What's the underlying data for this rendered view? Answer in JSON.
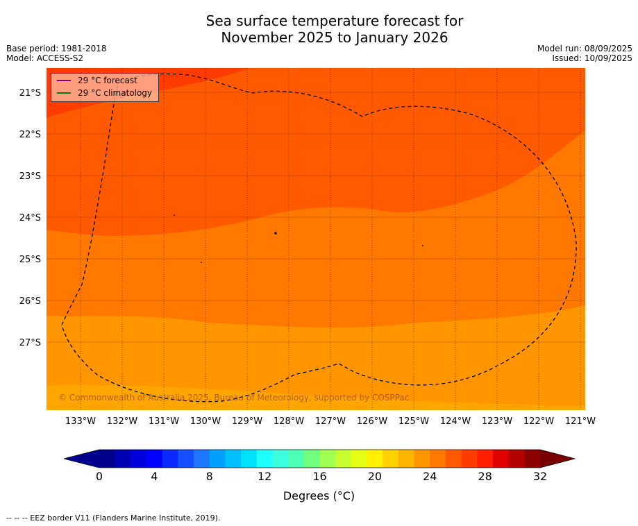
{
  "title": {
    "line1": "Sea surface temperature forecast for",
    "line2": "November 2025 to January 2026"
  },
  "meta_left": {
    "base_period": "Base period: 1981-2018",
    "model": "Model: ACCESS-S2"
  },
  "meta_right": {
    "model_run": "Model run: 08/09/2025",
    "issued": "Issued: 10/09/2025"
  },
  "legend": [
    {
      "label": "29 °C  forecast",
      "color": "#800080"
    },
    {
      "label": "29 °C  climatology",
      "color": "#008000"
    }
  ],
  "copyright": "© Commonwealth of Australia 2025, Bureau of Meteorology, supported by COSPPac",
  "lat_labels": [
    "21°S",
    "22°S",
    "23°S",
    "24°S",
    "25°S",
    "26°S",
    "27°S"
  ],
  "lon_labels": [
    "133°W",
    "132°W",
    "131°W",
    "130°W",
    "129°W",
    "128°W",
    "127°W",
    "126°W",
    "125°W",
    "124°W",
    "123°W",
    "122°W",
    "121°W"
  ],
  "colorbar": {
    "ticks": [
      "0",
      "4",
      "8",
      "12",
      "16",
      "20",
      "24",
      "28",
      "32"
    ],
    "label": "Degrees ($^\\circ$C)",
    "label_display": "Degrees (°C)",
    "colors": [
      "#00008c",
      "#0000b4",
      "#0000dc",
      "#0000ff",
      "#0a28ff",
      "#1450ff",
      "#1e78ff",
      "#00a0ff",
      "#00c0ff",
      "#00e0ff",
      "#1effff",
      "#3cffe0",
      "#4cffb4",
      "#70ff80",
      "#a0ff50",
      "#c8ff30",
      "#e6ff14",
      "#fff000",
      "#ffd200",
      "#ffb400",
      "#ff9600",
      "#ff7800",
      "#ff5a00",
      "#ff3c00",
      "#ff1e00",
      "#e00000",
      "#b40000",
      "#8c0000"
    ],
    "min_color": "#00008c",
    "max_color": "#780000"
  },
  "footnote": "--  --  -- EEZ border V11 (Flanders Marine Institute, 2019).",
  "field_colors": {
    "above_29": "#ff5a00",
    "c28": "#ff7800",
    "c27": "#ff9600",
    "c26": "#ffa500",
    "c30": "#ff3c00"
  }
}
